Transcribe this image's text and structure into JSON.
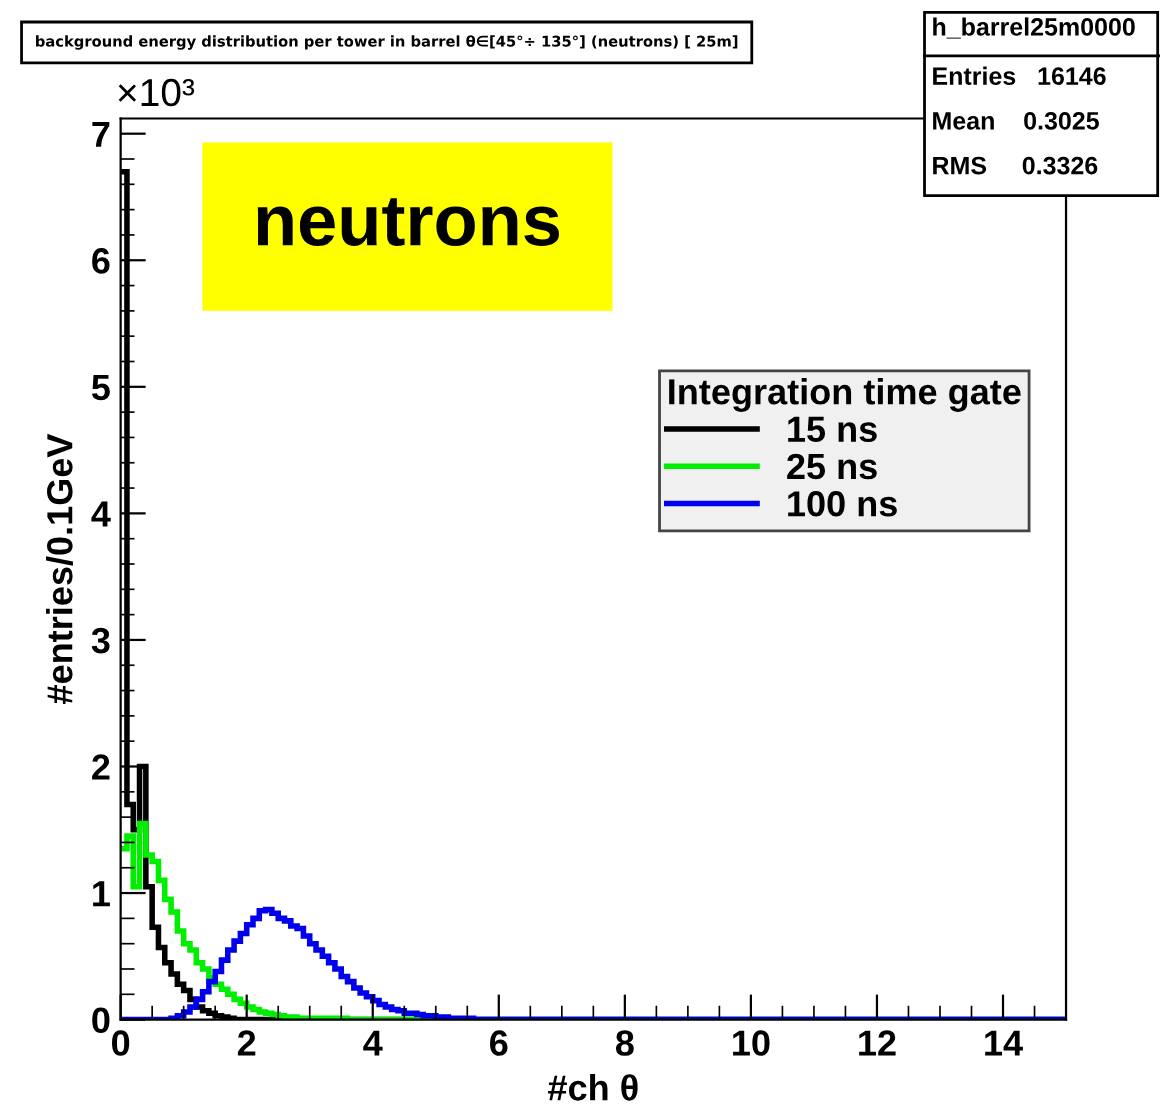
{
  "chart_data": {
    "type": "histogram",
    "title": "background energy distribution per tower in barrel θ∈[45°÷ 135°] (neutrons) [ 25m]",
    "xlabel": "#ch θ",
    "ylabel": "#entries/0.1GeV",
    "legend_title": "Integration time gate",
    "legend": "top right",
    "annotations": [
      "×10³",
      "neutrons",
      "h_barrel25m0000",
      "Entries   16146",
      "Mean    0.3025",
      "RMS     0.3326"
    ],
    "bins": [
      0,
      0.1,
      0.2,
      0.3,
      0.4,
      0.5,
      0.6,
      0.7,
      0.8,
      0.9,
      1.0,
      1.1,
      1.2,
      1.3,
      1.4,
      1.5,
      1.6,
      1.7,
      1.8,
      1.9,
      2.0,
      2.1,
      2.2,
      2.3,
      2.4,
      2.5,
      2.6,
      2.7,
      2.8,
      2.9,
      3.0,
      3.1,
      3.2,
      3.3,
      3.4,
      3.5,
      3.6,
      3.7,
      3.8,
      3.9,
      4.0,
      4.1,
      4.2,
      4.3,
      4.4,
      4.5,
      4.6,
      4.7,
      4.8,
      4.9,
      5.0,
      5.1,
      5.2,
      5.3,
      5.4,
      5.5,
      5.6,
      5.7,
      5.8,
      5.9,
      6.0,
      15
    ],
    "series": [
      {
        "name": "15 ns",
        "color": "#000000",
        "values": [
          6.7,
          1.7,
          1.5,
          2.0,
          1.05,
          0.73,
          0.57,
          0.45,
          0.36,
          0.28,
          0.23,
          0.16,
          0.1,
          0.07,
          0.05,
          0.03,
          0.02,
          0.01,
          0,
          0,
          0,
          0,
          0,
          0,
          0,
          0,
          0,
          0,
          0,
          0,
          0,
          0,
          0,
          0,
          0,
          0,
          0,
          0,
          0,
          0,
          0,
          0,
          0,
          0,
          0,
          0,
          0,
          0,
          0,
          0,
          0,
          0,
          0,
          0,
          0,
          0,
          0,
          0,
          0,
          0,
          0
        ]
      },
      {
        "name": "25 ns",
        "color": "#00ee00",
        "values": [
          1.35,
          1.45,
          1.05,
          1.55,
          1.3,
          1.25,
          1.1,
          0.95,
          0.85,
          0.7,
          0.6,
          0.55,
          0.45,
          0.4,
          0.33,
          0.28,
          0.24,
          0.2,
          0.16,
          0.13,
          0.1,
          0.08,
          0.06,
          0.05,
          0.04,
          0.03,
          0.02,
          0.02,
          0.01,
          0.01,
          0.01,
          0.01,
          0.01,
          0.01,
          0.01,
          0.01,
          0,
          0,
          0,
          0,
          0,
          0,
          0,
          0,
          0,
          0,
          0,
          0,
          0,
          0,
          0,
          0,
          0,
          0,
          0,
          0,
          0,
          0,
          0,
          0,
          0
        ]
      },
      {
        "name": "100 ns",
        "color": "#0000ee",
        "values": [
          0,
          0,
          0,
          0,
          0,
          0,
          0,
          0,
          0.01,
          0.03,
          0.06,
          0.1,
          0.16,
          0.22,
          0.3,
          0.38,
          0.47,
          0.55,
          0.62,
          0.68,
          0.75,
          0.8,
          0.86,
          0.87,
          0.84,
          0.8,
          0.78,
          0.74,
          0.72,
          0.66,
          0.6,
          0.55,
          0.5,
          0.45,
          0.4,
          0.34,
          0.3,
          0.25,
          0.21,
          0.18,
          0.15,
          0.12,
          0.1,
          0.08,
          0.07,
          0.05,
          0.05,
          0.04,
          0.03,
          0.03,
          0.02,
          0.02,
          0.01,
          0.01,
          0.01,
          0.01,
          0,
          0,
          0,
          0,
          0
        ]
      }
    ],
    "xlim": [
      0,
      15
    ],
    "xticks": [
      0,
      2,
      4,
      6,
      8,
      10,
      12,
      14
    ],
    "ylim": [
      0,
      7.12
    ],
    "yticks": [
      0,
      1,
      2,
      3,
      4,
      5,
      6,
      7
    ],
    "grid": false
  }
}
